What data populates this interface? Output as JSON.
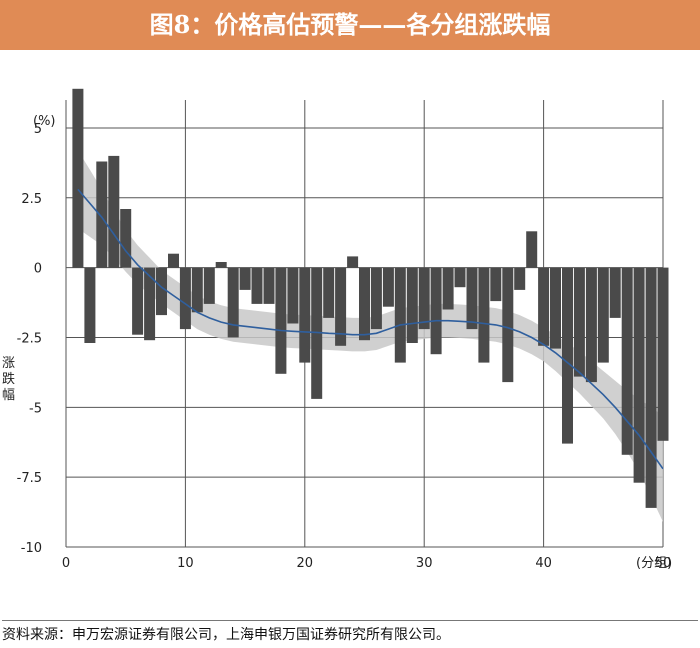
{
  "title": "图8：价格高估预警——各分组涨跌幅",
  "source": "资料来源：申万宏源证券有限公司，上海申银万国证券研究所有限公司。",
  "chart_data": {
    "type": "bar",
    "title": "图8：价格高估预警——各分组涨跌幅",
    "ylabel": "涨跌幅",
    "yunit": "(%)",
    "xlabel": "(分组)",
    "xlim": [
      0,
      50
    ],
    "ylim": [
      -10,
      6
    ],
    "xticks": [
      0,
      10,
      20,
      30,
      40,
      50
    ],
    "yticks": [
      5,
      2.5,
      0,
      -2.5,
      -5,
      -7.5,
      -10
    ],
    "ytick_labels": [
      "5",
      "2.5",
      "0",
      "-2.5",
      "-5",
      "-7.5",
      "-10"
    ],
    "grid": true,
    "categories": [
      1,
      2,
      3,
      4,
      5,
      6,
      7,
      8,
      9,
      10,
      11,
      12,
      13,
      14,
      15,
      16,
      17,
      18,
      19,
      20,
      21,
      22,
      23,
      24,
      25,
      26,
      27,
      28,
      29,
      30,
      31,
      32,
      33,
      34,
      35,
      36,
      37,
      38,
      39,
      40,
      41,
      42,
      43,
      44,
      45,
      46,
      47,
      48,
      49,
      50
    ],
    "values": [
      6.4,
      -2.7,
      3.8,
      4.0,
      2.1,
      -2.4,
      -2.6,
      -1.7,
      0.5,
      -2.2,
      -1.6,
      -1.3,
      0.2,
      -2.5,
      -0.8,
      -1.3,
      -1.3,
      -3.8,
      -2.0,
      -3.4,
      -4.7,
      -1.8,
      -2.8,
      0.4,
      -2.6,
      -2.2,
      -1.4,
      -3.4,
      -2.7,
      -2.2,
      -3.1,
      -1.5,
      -0.7,
      -2.2,
      -3.4,
      -1.2,
      -4.1,
      -0.8,
      1.3,
      -2.8,
      -2.9,
      -6.3,
      -3.9,
      -4.1,
      -3.4,
      -1.8,
      -6.7,
      -7.7,
      -8.6,
      -6.2
    ],
    "bar_color": "#4a4a4a",
    "trend": {
      "x": [
        1,
        2,
        3,
        4,
        5,
        6,
        7,
        8,
        9,
        10,
        11,
        12,
        13,
        14,
        15,
        16,
        17,
        18,
        19,
        20,
        21,
        22,
        23,
        24,
        25,
        26,
        27,
        28,
        29,
        30,
        31,
        32,
        33,
        34,
        35,
        36,
        37,
        38,
        39,
        40,
        41,
        42,
        43,
        44,
        45,
        46,
        47,
        48,
        49,
        50
      ],
      "y": [
        2.8,
        2.3,
        1.8,
        1.2,
        0.6,
        0.1,
        -0.3,
        -0.7,
        -1.0,
        -1.3,
        -1.6,
        -1.8,
        -1.95,
        -2.05,
        -2.1,
        -2.15,
        -2.2,
        -2.25,
        -2.28,
        -2.3,
        -2.32,
        -2.35,
        -2.37,
        -2.4,
        -2.4,
        -2.35,
        -2.2,
        -2.05,
        -2.0,
        -1.95,
        -1.9,
        -1.9,
        -1.92,
        -1.95,
        -2.0,
        -2.05,
        -2.15,
        -2.3,
        -2.5,
        -2.75,
        -3.05,
        -3.4,
        -3.75,
        -4.15,
        -4.55,
        -5.0,
        -5.5,
        -6.0,
        -6.6,
        -7.2
      ],
      "band": [
        1.4,
        1.2,
        1.0,
        0.85,
        0.75,
        0.7,
        0.65,
        0.6,
        0.6,
        0.6,
        0.6,
        0.6,
        0.6,
        0.6,
        0.6,
        0.6,
        0.6,
        0.6,
        0.6,
        0.6,
        0.6,
        0.6,
        0.6,
        0.6,
        0.6,
        0.6,
        0.6,
        0.6,
        0.6,
        0.6,
        0.6,
        0.6,
        0.6,
        0.6,
        0.6,
        0.6,
        0.6,
        0.6,
        0.6,
        0.6,
        0.65,
        0.7,
        0.75,
        0.8,
        0.85,
        0.95,
        1.1,
        1.3,
        1.6,
        1.9
      ],
      "line_color": "#2f5f9e",
      "band_color": "#c8c8c8"
    }
  }
}
